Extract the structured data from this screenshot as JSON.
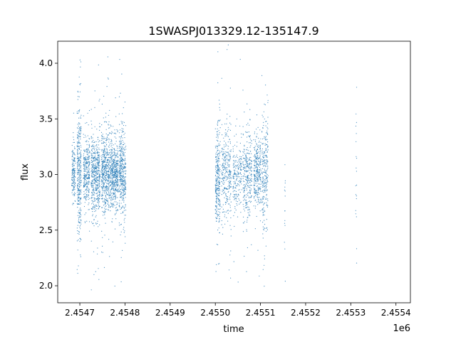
{
  "chart_data": {
    "type": "scatter",
    "title": "1SWASPJ013329.12-135147.9",
    "xlabel": "time",
    "ylabel": "flux",
    "x_offset_label": "1e6",
    "xlim": [
      2454651,
      2455432
    ],
    "ylim": [
      1.847,
      4.198
    ],
    "xticks": [
      2454700,
      2454800,
      2454900,
      2455000,
      2455100,
      2455200,
      2455300,
      2455400
    ],
    "xtick_labels": [
      "2.4547",
      "2.4548",
      "2.4549",
      "2.4550",
      "2.4551",
      "2.4552",
      "2.4553",
      "2.4554"
    ],
    "yticks": [
      2.0,
      2.5,
      3.0,
      3.5,
      4.0
    ],
    "ytick_labels": [
      "2.0",
      "2.5",
      "3.0",
      "3.5",
      "4.0"
    ],
    "grid": false,
    "marker_color": "#1f77b4",
    "segments": [
      {
        "x_range": [
          2454682,
          2454690
        ],
        "n": 150,
        "median_flux": 3.03,
        "scatter": 0.12
      },
      {
        "x_range": [
          2454694,
          2454703
        ],
        "n": 350,
        "median_flux": 3.0,
        "scatter": 0.28
      },
      {
        "x_range": [
          2454708,
          2454722
        ],
        "n": 300,
        "median_flux": 3.02,
        "scatter": 0.16
      },
      {
        "x_range": [
          2454725,
          2454745
        ],
        "n": 500,
        "median_flux": 3.0,
        "scatter": 0.18
      },
      {
        "x_range": [
          2454748,
          2454766
        ],
        "n": 500,
        "median_flux": 3.02,
        "scatter": 0.18
      },
      {
        "x_range": [
          2454767,
          2454785
        ],
        "n": 500,
        "median_flux": 3.0,
        "scatter": 0.15
      },
      {
        "x_range": [
          2454787,
          2454802
        ],
        "n": 400,
        "median_flux": 3.0,
        "scatter": 0.2
      },
      {
        "x_range": [
          2455000,
          2455011
        ],
        "n": 300,
        "median_flux": 2.98,
        "scatter": 0.22
      },
      {
        "x_range": [
          2455014,
          2455035
        ],
        "n": 300,
        "median_flux": 3.0,
        "scatter": 0.18
      },
      {
        "x_range": [
          2455039,
          2455059
        ],
        "n": 200,
        "median_flux": 3.0,
        "scatter": 0.15
      },
      {
        "x_range": [
          2455061,
          2455081
        ],
        "n": 300,
        "median_flux": 3.0,
        "scatter": 0.2
      },
      {
        "x_range": [
          2455085,
          2455101
        ],
        "n": 300,
        "median_flux": 3.02,
        "scatter": 0.15
      },
      {
        "x_range": [
          2455103,
          2455117
        ],
        "n": 250,
        "median_flux": 3.02,
        "scatter": 0.25
      },
      {
        "x_range": [
          2455153,
          2455155
        ],
        "n": 15,
        "median_flux": 2.8,
        "scatter": 0.2
      },
      {
        "x_range": [
          2455311,
          2455313
        ],
        "n": 20,
        "median_flux": 3.0,
        "scatter": 0.3
      }
    ]
  }
}
